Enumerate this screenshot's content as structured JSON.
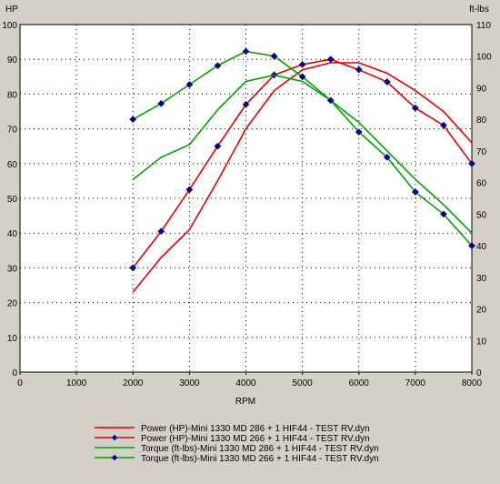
{
  "chart_data": {
    "type": "line",
    "xlabel": "RPM",
    "ylabel_left": "HP",
    "ylabel_right": "ft-lbs",
    "xlim": [
      0,
      8000
    ],
    "ylim_left": [
      0,
      100
    ],
    "ylim_right": [
      0,
      110
    ],
    "x_ticks": [
      0,
      1000,
      2000,
      3000,
      4000,
      5000,
      6000,
      7000,
      8000
    ],
    "y_left_ticks": [
      0,
      10,
      20,
      30,
      40,
      50,
      60,
      70,
      80,
      90,
      100
    ],
    "y_right_ticks": [
      0,
      10,
      20,
      30,
      40,
      50,
      60,
      70,
      80,
      90,
      100,
      110
    ],
    "grid": true,
    "legend_position": "bottom",
    "series": [
      {
        "name": "Power (HP)-Mini 1330  MD 286 + 1 HIF44 - TEST RV.dyn",
        "axis": "left",
        "color": "#e00000",
        "marker": false,
        "points": [
          [
            2000,
            23
          ],
          [
            2500,
            33
          ],
          [
            3000,
            41
          ],
          [
            3500,
            55
          ],
          [
            4000,
            70
          ],
          [
            4500,
            81
          ],
          [
            5000,
            87
          ],
          [
            5500,
            89
          ],
          [
            6000,
            89
          ],
          [
            6500,
            86
          ],
          [
            7000,
            81
          ],
          [
            7500,
            75
          ],
          [
            8000,
            66
          ]
        ]
      },
      {
        "name": "Power (HP)-Mini 1330  MD 266 + 1 HIF44 - TEST RV.dyn",
        "axis": "left",
        "color": "#e00000",
        "marker": true,
        "points": [
          [
            2000,
            30
          ],
          [
            2500,
            40.5
          ],
          [
            3000,
            52.5
          ],
          [
            3500,
            65
          ],
          [
            4000,
            77
          ],
          [
            4500,
            85.5
          ],
          [
            5000,
            88.5
          ],
          [
            5500,
            90
          ],
          [
            6000,
            87
          ],
          [
            6500,
            83.5
          ],
          [
            7000,
            76
          ],
          [
            7500,
            71
          ],
          [
            8000,
            60
          ]
        ]
      },
      {
        "name": "Torque (ft-lbs)-Mini 1330  MD 286 + 1 HIF44 - TEST RV.dyn",
        "axis": "right",
        "color": "#00a000",
        "marker": false,
        "points": [
          [
            2000,
            61
          ],
          [
            2500,
            68
          ],
          [
            3000,
            72
          ],
          [
            3500,
            83
          ],
          [
            4000,
            92
          ],
          [
            4500,
            94
          ],
          [
            5000,
            92
          ],
          [
            5500,
            86
          ],
          [
            6000,
            79
          ],
          [
            6500,
            70
          ],
          [
            7000,
            61
          ],
          [
            7500,
            53
          ],
          [
            8000,
            44
          ]
        ]
      },
      {
        "name": "Torque (ft-lbs)-Mini 1330  MD 266 + 1 HIF44 - TEST RV.dyn",
        "axis": "right",
        "color": "#00a000",
        "marker": true,
        "points": [
          [
            2000,
            80
          ],
          [
            2500,
            85
          ],
          [
            3000,
            91
          ],
          [
            3500,
            97
          ],
          [
            4000,
            101.5
          ],
          [
            4500,
            100
          ],
          [
            5000,
            93.5
          ],
          [
            5500,
            86
          ],
          [
            6000,
            76
          ],
          [
            6500,
            68
          ],
          [
            7000,
            57
          ],
          [
            7500,
            50
          ],
          [
            8000,
            40
          ]
        ]
      }
    ]
  }
}
